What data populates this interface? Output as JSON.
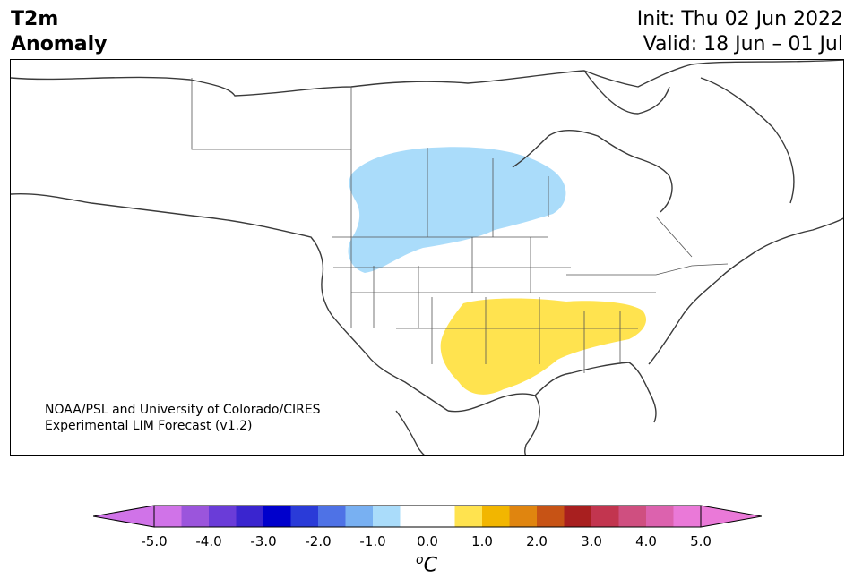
{
  "title": {
    "variable_line1": "T2m",
    "variable_line2": "Anomaly",
    "init": "Init: Thu 02 Jun 2022",
    "valid": "Valid: 18 Jun – 01 Jul"
  },
  "map": {
    "credit_line1": "NOAA/PSL and University of Colorado/CIRES",
    "credit_line2": "Experimental LIM Forecast (v1.2)",
    "anomaly_regions": [
      {
        "name": "cool-anomaly-northern-plains-canada",
        "value": -1.0,
        "color": "#aadcfa"
      },
      {
        "name": "warm-anomaly-southern-plains",
        "value": 1.0,
        "color": "#ffe34f"
      }
    ]
  },
  "colorbar": {
    "unit_base": "C",
    "unit_sup": "o",
    "tick_labels": [
      "-5.0",
      "-4.0",
      "-3.0",
      "-2.0",
      "-1.0",
      "0.0",
      "1.0",
      "2.0",
      "3.0",
      "4.0",
      "5.0"
    ],
    "colors": [
      "#d073e8",
      "#9b55dc",
      "#6a3cd8",
      "#3a25cf",
      "#0000cc",
      "#2a3bd8",
      "#4e72e6",
      "#78b0f2",
      "#aadcfa",
      "#ffffff",
      "#ffffff",
      "#ffe34f",
      "#f2b600",
      "#e0850f",
      "#c75315",
      "#a81f1f",
      "#c2354f",
      "#cf4f80",
      "#dc62ae",
      "#ea79d8"
    ],
    "under_color": "#d073e8",
    "over_color": "#ea79d8"
  }
}
